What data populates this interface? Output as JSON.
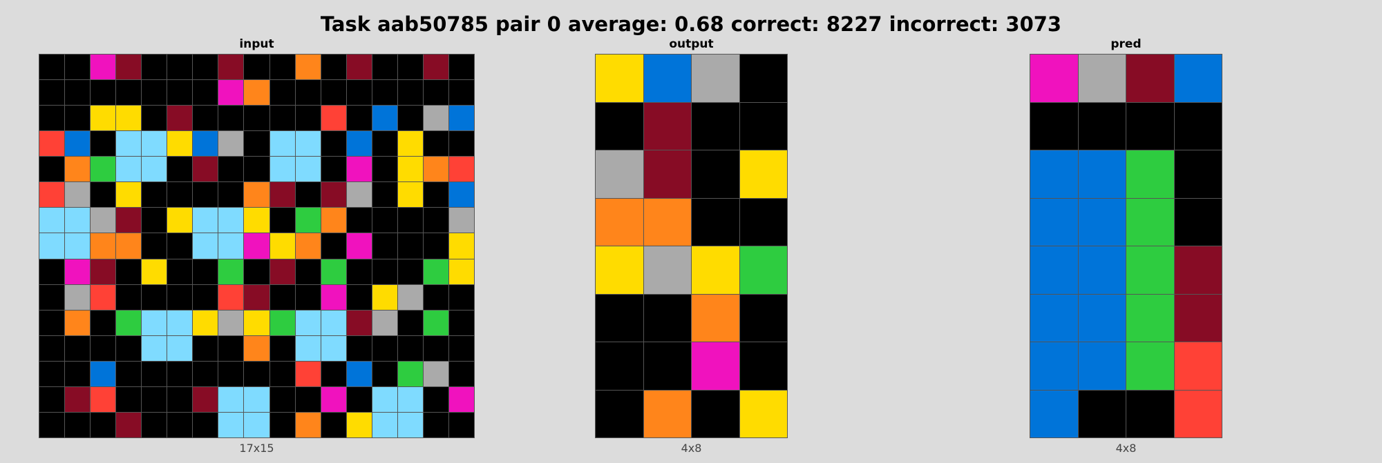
{
  "title": "Task aab50785 pair 0 average: 0.68 correct: 8227 incorrect: 3073",
  "colors": {
    "0": "#000000",
    "1": "#0074d9",
    "2": "#ff4136",
    "3": "#2ecc40",
    "4": "#ffdc00",
    "5": "#aaaaaa",
    "6": "#f012be",
    "7": "#ff851b",
    "8": "#7fdbff",
    "9": "#870c25"
  },
  "panels": [
    {
      "key": "input",
      "title": "input",
      "dims": "17x15",
      "grid": [
        [
          0,
          0,
          6,
          9,
          0,
          0,
          0,
          9,
          0,
          0,
          7,
          0,
          9,
          0,
          0,
          9,
          0
        ],
        [
          0,
          0,
          0,
          0,
          0,
          0,
          0,
          6,
          7,
          0,
          0,
          0,
          0,
          0,
          0,
          0,
          0
        ],
        [
          0,
          0,
          4,
          4,
          0,
          9,
          0,
          0,
          0,
          0,
          0,
          2,
          0,
          1,
          0,
          5,
          1
        ],
        [
          2,
          1,
          0,
          8,
          8,
          4,
          1,
          5,
          0,
          8,
          8,
          0,
          1,
          0,
          4,
          0,
          0
        ],
        [
          0,
          7,
          3,
          8,
          8,
          0,
          9,
          0,
          0,
          8,
          8,
          0,
          6,
          0,
          4,
          7,
          2
        ],
        [
          2,
          5,
          0,
          4,
          0,
          0,
          0,
          0,
          7,
          9,
          0,
          9,
          5,
          0,
          4,
          0,
          1
        ],
        [
          8,
          8,
          5,
          9,
          0,
          4,
          8,
          8,
          4,
          0,
          3,
          7,
          0,
          0,
          0,
          0,
          5
        ],
        [
          8,
          8,
          7,
          7,
          0,
          0,
          8,
          8,
          6,
          4,
          7,
          0,
          6,
          0,
          0,
          0,
          4
        ],
        [
          0,
          6,
          9,
          0,
          4,
          0,
          0,
          3,
          0,
          9,
          0,
          3,
          0,
          0,
          0,
          3,
          4
        ],
        [
          0,
          5,
          2,
          0,
          0,
          0,
          0,
          2,
          9,
          0,
          0,
          6,
          0,
          4,
          5,
          0,
          0
        ],
        [
          0,
          7,
          0,
          3,
          8,
          8,
          4,
          5,
          4,
          3,
          8,
          8,
          9,
          5,
          0,
          3,
          0
        ],
        [
          0,
          0,
          0,
          0,
          8,
          8,
          0,
          0,
          7,
          0,
          8,
          8,
          0,
          0,
          0,
          0,
          0
        ],
        [
          0,
          0,
          1,
          0,
          0,
          0,
          0,
          0,
          0,
          0,
          2,
          0,
          1,
          0,
          3,
          5,
          0
        ],
        [
          0,
          9,
          2,
          0,
          0,
          0,
          9,
          8,
          8,
          0,
          0,
          6,
          0,
          8,
          8,
          0,
          6
        ],
        [
          0,
          0,
          0,
          9,
          0,
          0,
          0,
          8,
          8,
          0,
          7,
          0,
          4,
          8,
          8,
          0,
          0
        ]
      ]
    },
    {
      "key": "output",
      "title": "output",
      "dims": "4x8",
      "grid": [
        [
          4,
          1,
          5,
          0
        ],
        [
          0,
          9,
          0,
          0
        ],
        [
          5,
          9,
          0,
          4
        ],
        [
          7,
          7,
          0,
          0
        ],
        [
          4,
          5,
          4,
          3
        ],
        [
          0,
          0,
          7,
          0
        ],
        [
          0,
          0,
          6,
          0
        ],
        [
          0,
          7,
          0,
          4
        ]
      ]
    },
    {
      "key": "pred",
      "title": "pred",
      "dims": "4x8",
      "grid": [
        [
          6,
          5,
          9,
          1
        ],
        [
          0,
          0,
          0,
          0
        ],
        [
          1,
          1,
          3,
          0
        ],
        [
          1,
          1,
          3,
          0
        ],
        [
          1,
          1,
          3,
          9
        ],
        [
          1,
          1,
          3,
          9
        ],
        [
          1,
          1,
          3,
          2
        ],
        [
          1,
          0,
          0,
          2
        ]
      ]
    }
  ]
}
